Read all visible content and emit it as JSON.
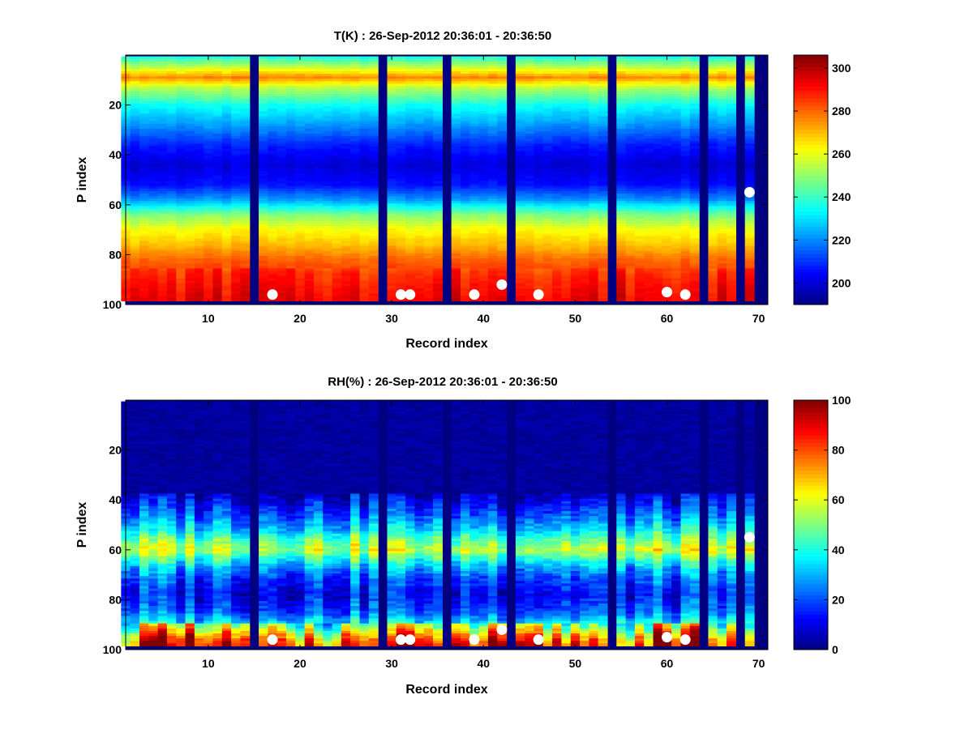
{
  "chart_data": [
    {
      "type": "heatmap",
      "title": "T(K) : 26-Sep-2012 20:36:01 - 20:36:50",
      "xlabel": "Record index",
      "ylabel": "P index",
      "xlim": [
        1,
        71
      ],
      "ylim": [
        0,
        100
      ],
      "y_direction": "reversed",
      "xticks": [
        10,
        20,
        30,
        40,
        50,
        60,
        70
      ],
      "yticks": [
        20,
        40,
        60,
        80,
        100
      ],
      "colormap": "jet",
      "colorbar": {
        "range": [
          190,
          306
        ],
        "ticks": [
          200,
          220,
          240,
          260,
          280,
          300
        ]
      },
      "grid": false,
      "gap_records": [
        15,
        29,
        36,
        43,
        54,
        64,
        68,
        70
      ],
      "gap_fill_value": 190,
      "valid_p_range": [
        1,
        98
      ],
      "profile_p": [
        1,
        5,
        9,
        13,
        20,
        28,
        36,
        44,
        52,
        58,
        64,
        70,
        76,
        82,
        88,
        94,
        98
      ],
      "profile_values": [
        238,
        256,
        276,
        255,
        235,
        222,
        208,
        200,
        206,
        222,
        248,
        262,
        270,
        280,
        286,
        290,
        292
      ],
      "markers": [
        {
          "record": 17,
          "p": 96
        },
        {
          "record": 31,
          "p": 96
        },
        {
          "record": 32,
          "p": 96
        },
        {
          "record": 39,
          "p": 96
        },
        {
          "record": 42,
          "p": 92
        },
        {
          "record": 46,
          "p": 96
        },
        {
          "record": 60,
          "p": 95
        },
        {
          "record": 62,
          "p": 96
        },
        {
          "record": 69,
          "p": 55
        }
      ]
    },
    {
      "type": "heatmap",
      "title": "RH(%) : 26-Sep-2012 20:36:01 - 20:36:50",
      "xlabel": "Record index",
      "ylabel": "P index",
      "xlim": [
        1,
        71
      ],
      "ylim": [
        0,
        100
      ],
      "y_direction": "reversed",
      "xticks": [
        10,
        20,
        30,
        40,
        50,
        60,
        70
      ],
      "yticks": [
        20,
        40,
        60,
        80,
        100
      ],
      "colormap": "jet",
      "colorbar": {
        "range": [
          0,
          100
        ],
        "ticks": [
          0,
          20,
          40,
          60,
          80,
          100
        ]
      },
      "grid": false,
      "gap_records": [
        15,
        29,
        36,
        43,
        54,
        64,
        68,
        70
      ],
      "gap_fill_value": 0,
      "valid_p_range": [
        1,
        98
      ],
      "profile_p": [
        1,
        30,
        38,
        46,
        52,
        56,
        60,
        64,
        68,
        72,
        78,
        84,
        88,
        92,
        96,
        98
      ],
      "profile_values": [
        1,
        2,
        8,
        22,
        35,
        48,
        58,
        42,
        28,
        20,
        14,
        20,
        32,
        50,
        70,
        75
      ],
      "markers": [
        {
          "record": 17,
          "p": 96
        },
        {
          "record": 31,
          "p": 96
        },
        {
          "record": 32,
          "p": 96
        },
        {
          "record": 39,
          "p": 96
        },
        {
          "record": 42,
          "p": 92
        },
        {
          "record": 46,
          "p": 96
        },
        {
          "record": 60,
          "p": 95
        },
        {
          "record": 62,
          "p": 96
        },
        {
          "record": 69,
          "p": 55
        }
      ]
    }
  ]
}
